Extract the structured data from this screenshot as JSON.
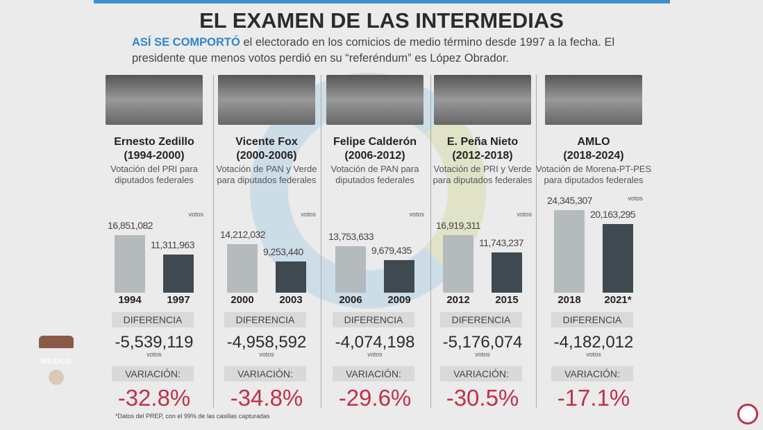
{
  "title": "EL EXAMEN DE LAS INTERMEDIAS",
  "subtitle_highlight": "ASÍ SE COMPORTÓ",
  "subtitle_rest": " el electorado en los comicios de medio término desde 1997 a la fecha. El presidente que menos votos perdió en su “referéndum” es López Obrador.",
  "footnote": "*Datos del PREP, con el 99% de las casillas capturadas",
  "logo_text": "MÉXICO",
  "labels": {
    "diferencia": "DIFERENCIA",
    "variacion": "VARIACIÓN:",
    "votos": "votos"
  },
  "colors": {
    "accent": "#2e86c9",
    "before_bar": "#b5babd",
    "after_bar": "#3f4a50",
    "negative": "#c0304a"
  },
  "chart_data": {
    "type": "bar",
    "unit": "votos",
    "groups": [
      {
        "president": "Ernesto Zedillo",
        "term": "(1994-2000)",
        "description": "Votación del PRI para diputados federales",
        "categories": [
          "1994",
          "1997"
        ],
        "values": [
          16851082,
          11311963
        ],
        "value_labels": [
          "16,851,082",
          "11,311,963"
        ],
        "difference": "-5,539,119",
        "variation": "-32.8%"
      },
      {
        "president": "Vicente Fox",
        "term": "(2000-2006)",
        "description": "Votación de PAN y Verde para diputados federales",
        "categories": [
          "2000",
          "2003"
        ],
        "values": [
          14212032,
          9253440
        ],
        "value_labels": [
          "14,212,032",
          "9,253,440"
        ],
        "difference": "-4,958,592",
        "variation": "-34.8%"
      },
      {
        "president": "Felipe Calderón",
        "term": "(2006-2012)",
        "description": "Votación de PAN para diputados federales",
        "categories": [
          "2006",
          "2009"
        ],
        "values": [
          13753633,
          9679435
        ],
        "value_labels": [
          "13,753,633",
          "9,679,435"
        ],
        "difference": "-4,074,198",
        "variation": "-29.6%"
      },
      {
        "president": "E. Peña Nieto",
        "term": "(2012-2018)",
        "description": "Votación de PRI y Verde para diputados federales",
        "categories": [
          "2012",
          "2015"
        ],
        "values": [
          16919311,
          11743237
        ],
        "value_labels": [
          "16,919,311",
          "11,743,237"
        ],
        "difference": "-5,176,074",
        "variation": "-30.5%"
      },
      {
        "president": "AMLO",
        "term": "(2018-2024)",
        "description": "Votación de Morena-PT-PES para diputados federales",
        "categories": [
          "2018",
          "2021*"
        ],
        "values": [
          24345307,
          20163295
        ],
        "value_labels": [
          "24,345,307",
          "20,163,295"
        ],
        "difference": "-4,182,012",
        "variation": "-17.1%"
      }
    ]
  }
}
